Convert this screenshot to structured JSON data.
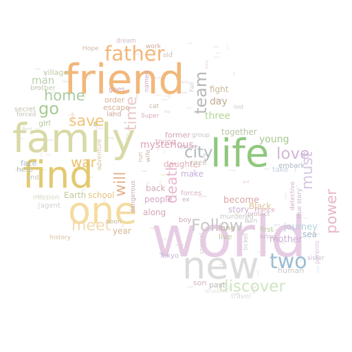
{
  "word_cloud": {
    "words": [
      {
        "text": "friend",
        "color": "#f2b77a"
      },
      {
        "text": "father",
        "color": "#f2b77a"
      },
      {
        "text": "family",
        "color": "#d8d9a6"
      },
      {
        "text": "find",
        "color": "#e3c96f"
      },
      {
        "text": "one",
        "color": "#f4dca0"
      },
      {
        "text": "world",
        "color": "#e7cde3"
      },
      {
        "text": "new",
        "color": "#dcdcdc"
      },
      {
        "text": "life",
        "color": "#8fc77e"
      },
      {
        "text": "two",
        "color": "#9bbbd2"
      },
      {
        "text": "Follow",
        "color": "#c9c9c9"
      },
      {
        "text": "discover",
        "color": "#cfe4bf"
      },
      {
        "text": "home",
        "color": "#a9cba0"
      },
      {
        "text": "go",
        "color": "#a6cc93"
      },
      {
        "text": "save",
        "color": "#f2c27c"
      },
      {
        "text": "war",
        "color": "#ecc16e"
      },
      {
        "text": "meet",
        "color": "#f0dbb0"
      },
      {
        "text": "will",
        "color": "#e2b08c"
      },
      {
        "text": "time",
        "color": "#e9c8c8"
      },
      {
        "text": "team",
        "color": "#b7b7b7"
      },
      {
        "text": "city",
        "color": "#b1b8bf"
      },
      {
        "text": "love",
        "color": "#d2b6d7"
      },
      {
        "text": "must",
        "color": "#d6c6e5"
      },
      {
        "text": "death",
        "color": "#e8b7d0"
      },
      {
        "text": "power",
        "color": "#e8b6c9"
      },
      {
        "text": "man",
        "color": "#b6cfaa"
      },
      {
        "text": "mysterious",
        "color": "#dba0b3"
      },
      {
        "text": "day",
        "color": "#c1ab8e"
      },
      {
        "text": "fight",
        "color": "#c9b79a"
      },
      {
        "text": "three",
        "color": "#b4d693"
      },
      {
        "text": "young",
        "color": "#a6c98d"
      },
      {
        "text": "together",
        "color": "#b7c4a8"
      },
      {
        "text": "become",
        "color": "#d9a6a6"
      },
      {
        "text": "story",
        "color": "#c6b1d2"
      },
      {
        "text": "murdered",
        "color": "#c8c8c8"
      },
      {
        "text": "Black",
        "color": "#e2c293"
      },
      {
        "text": "journey",
        "color": "#b7d0dd"
      },
      {
        "text": "mother",
        "color": "#cbaed4"
      },
      {
        "text": "human",
        "color": "#c9c9c9"
      },
      {
        "text": "sea",
        "color": "#a3b6c5"
      },
      {
        "text": "school",
        "color": "#e8c27d"
      },
      {
        "text": "Earth",
        "color": "#c2c99a"
      },
      {
        "text": "year",
        "color": "#d4b48a"
      },
      {
        "text": "people",
        "color": "#d6a6c4"
      },
      {
        "text": "daughter",
        "color": "#e1b0b5"
      },
      {
        "text": "make",
        "color": "#c5b0db"
      },
      {
        "text": "forces",
        "color": "#d8b3c7"
      },
      {
        "text": "long",
        "color": "#c7b0a6"
      },
      {
        "text": "live",
        "color": "#b8c9a2"
      },
      {
        "text": "past",
        "color": "#b8b8b8"
      },
      {
        "text": "son",
        "color": "#d2b8c5"
      },
      {
        "text": "Tokyo",
        "color": "#c6b4d8"
      },
      {
        "text": "first",
        "color": "#b9c4a0"
      },
      {
        "text": "bring",
        "color": "#c9b1c7"
      },
      {
        "text": "race",
        "color": "#c8c1b5"
      },
      {
        "text": "boy",
        "color": "#d1a7b6"
      },
      {
        "text": "along",
        "color": "#d2a4b2"
      },
      {
        "text": "back",
        "color": "#d7a8b6"
      },
      {
        "text": "take",
        "color": "#c8cfe0"
      },
      {
        "text": "protect",
        "color": "#d1b2c1"
      },
      {
        "text": "embark",
        "color": "#a8b6c4"
      },
      {
        "text": "village",
        "color": "#b8c9a2"
      },
      {
        "text": "brother",
        "color": "#c3c9b3"
      },
      {
        "text": "secret",
        "color": "#c5c0ad"
      },
      {
        "text": "forced",
        "color": "#c2c2b8"
      },
      {
        "text": "girl",
        "color": "#b5cc9b"
      },
      {
        "text": "face",
        "color": "#a9bcca"
      },
      {
        "text": "help",
        "color": "#b6c6b0"
      },
      {
        "text": "end",
        "color": "#c8c8c8"
      },
      {
        "text": "mission",
        "color": "#d7d7c4"
      },
      {
        "text": "agent",
        "color": "#cfcfcf"
      },
      {
        "text": "history",
        "color": "#d9c39d"
      },
      {
        "text": "order",
        "color": "#d6b08f"
      },
      {
        "text": "escape",
        "color": "#d8b098"
      },
      {
        "text": "land",
        "color": "#d0a99d"
      },
      {
        "text": "goes",
        "color": "#cfa8a8"
      },
      {
        "text": "dream",
        "color": "#d1b8c8"
      },
      {
        "text": "work",
        "color": "#d5a896"
      },
      {
        "text": "Hope",
        "color": "#d1b8a8"
      },
      {
        "text": "old",
        "color": "#d1bdb0"
      },
      {
        "text": "named",
        "color": "#d2a6c6"
      },
      {
        "text": "cat",
        "color": "#c1b7a2"
      },
      {
        "text": "Super",
        "color": "#dfa7bd"
      },
      {
        "text": "former",
        "color": "#d1a4b1"
      },
      {
        "text": "trying",
        "color": "#d7aabd"
      },
      {
        "text": "rescue",
        "color": "#d2b4c9"
      },
      {
        "text": "adventure",
        "color": "#d8c3a3"
      },
      {
        "text": "dangerous",
        "color": "#c9a7b3"
      },
      {
        "text": "soon",
        "color": "#c9b9a0"
      },
      {
        "text": "group",
        "color": "#c6c6c6"
      },
      {
        "text": "ex",
        "color": "#cbb0c6"
      },
      {
        "text": "turn",
        "color": "#c5c5c5"
      },
      {
        "text": "special",
        "color": "#d0d0d0"
      },
      {
        "text": "ticket",
        "color": "#c8c8c8"
      },
      {
        "text": "France",
        "color": "#d4a9c0"
      },
      {
        "text": "sister",
        "color": "#c9b9d6"
      },
      {
        "text": "detective",
        "color": "#d3aec8"
      },
      {
        "text": "true story",
        "color": "#c9b4d0"
      },
      {
        "text": "parents",
        "color": "#d6c2d8"
      },
      {
        "text": "travel",
        "color": "#dcdcdc"
      },
      {
        "text": "student",
        "color": "#e4e4e4"
      },
      {
        "text": "run",
        "color": "#c9b7a8"
      },
      {
        "text": "wife",
        "color": "#c8b3a8"
      },
      {
        "text": "Fall",
        "color": "#cfcfcf"
      },
      {
        "text": "lost",
        "color": "#c7c7c7"
      }
    ],
    "filler_words": [
      "life",
      "plan",
      "king",
      "war",
      "son",
      "god",
      "sea",
      "hero",
      "city",
      "game",
      "hope",
      "rule",
      "art",
      "fate",
      "star",
      "town",
      "past",
      "lord",
      "fire",
      "film",
      "band",
      "soul",
      "kid",
      "team",
      "love",
      "girl",
      "show",
      "deal",
      "home",
      "fear",
      "moon",
      "dark",
      "land",
      "race",
      "crew",
      "time",
      "evil",
      "case",
      "body",
      "camp",
      "gang",
      "head",
      "heart",
      "night",
      "road",
      "ship",
      "gold",
      "law",
      "job",
      "age",
      "way",
      "man",
      "son",
      "sky",
      "map",
      "bed",
      "car",
      "dog",
      "boy",
      "kin"
    ],
    "filler_colors": [
      "#e9c8d3",
      "#d9e3c8",
      "#d6cfe6",
      "#efd9b8",
      "#cfdde6",
      "#e6d2c8",
      "#dddddd",
      "#c8d8b8",
      "#e8c2c2"
    ]
  }
}
